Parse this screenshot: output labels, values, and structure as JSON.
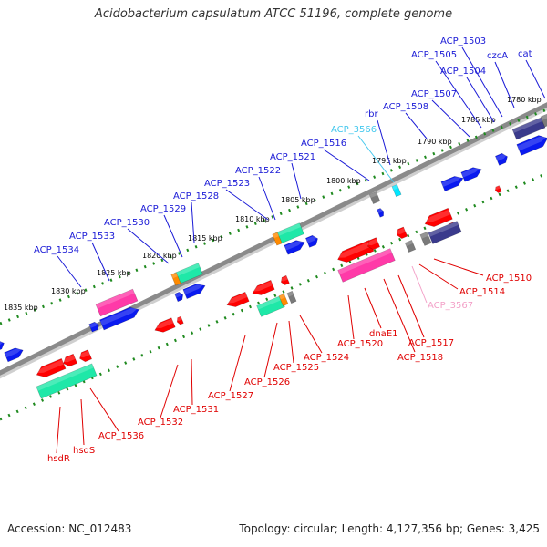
{
  "title": "Acidobacterium capsulatum ATCC 51196, complete genome",
  "footer": {
    "accession": "Accession: NC_012483",
    "summary": "Topology: circular; Length: 4,127,356 bp; Genes: 3,425"
  },
  "colors": {
    "backbone": "#8c8c8c",
    "ticks": "#1f8a1f",
    "forward_label": "#1a1ad6",
    "reverse_label": "#e00000",
    "rna_label": "#44c8ee",
    "pseudo_label": "#f3a1c8",
    "red": "#ff0000",
    "magenta": "#ff3aa8",
    "green": "#1fe8a8",
    "blue": "#0a1af0",
    "navy": "#3a3a8c",
    "gray": "#7a7a7a",
    "orange": "#ff8a00",
    "cyan": "#00e6ff"
  },
  "scale_labels": [
    {
      "text": "1780 kbp"
    },
    {
      "text": "1785 kbp"
    },
    {
      "text": "1790 kbp"
    },
    {
      "text": "1795 kbp"
    },
    {
      "text": "1800 kbp"
    },
    {
      "text": "1805 kbp"
    },
    {
      "text": "1810 kbp"
    },
    {
      "text": "1815 kbp"
    },
    {
      "text": "1820 kbp"
    },
    {
      "text": "1825 kbp"
    },
    {
      "text": "1830 kbp"
    },
    {
      "text": "1835 kbp"
    }
  ],
  "forward_labels": [
    {
      "text": "ACP_1503"
    },
    {
      "text": "ACP_1505"
    },
    {
      "text": "czcA"
    },
    {
      "text": "cat"
    },
    {
      "text": "ACP_1504"
    },
    {
      "text": "ACP_1507"
    },
    {
      "text": "ACP_1508"
    },
    {
      "text": "rbr"
    },
    {
      "text": "ACP_3566"
    },
    {
      "text": "ACP_1516"
    },
    {
      "text": "ACP_1521"
    },
    {
      "text": "ACP_1522"
    },
    {
      "text": "ACP_1523"
    },
    {
      "text": "ACP_1528"
    },
    {
      "text": "ACP_1529"
    },
    {
      "text": "ACP_1530"
    },
    {
      "text": "ACP_1533"
    },
    {
      "text": "ACP_1534"
    }
  ],
  "reverse_labels": [
    {
      "text": "ACP_1510"
    },
    {
      "text": "ACP_1514"
    },
    {
      "text": "ACP_3567"
    },
    {
      "text": "ACP_1517"
    },
    {
      "text": "ACP_1518"
    },
    {
      "text": "dnaE1"
    },
    {
      "text": "ACP_1520"
    },
    {
      "text": "ACP_1524"
    },
    {
      "text": "ACP_1525"
    },
    {
      "text": "ACP_1526"
    },
    {
      "text": "ACP_1527"
    },
    {
      "text": "ACP_1531"
    },
    {
      "text": "ACP_1532"
    },
    {
      "text": "ACP_1536"
    },
    {
      "text": "hsdS"
    },
    {
      "text": "hsdR"
    }
  ]
}
